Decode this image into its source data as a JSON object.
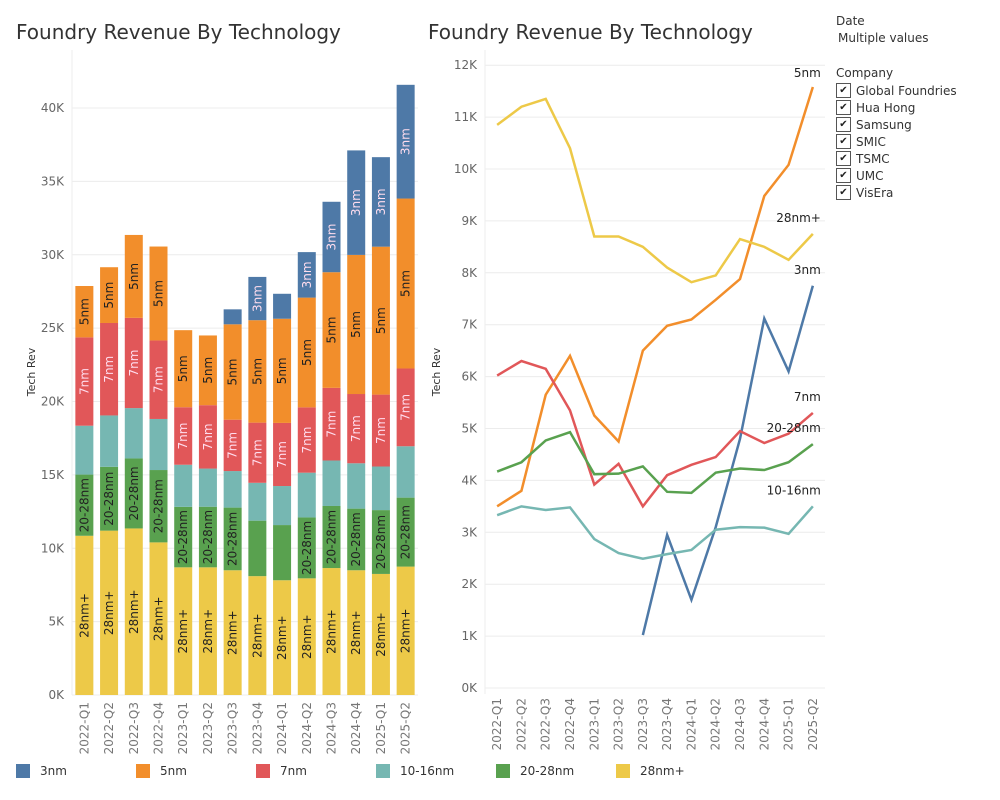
{
  "chart_data": [
    {
      "type": "bar",
      "stacked": true,
      "title": "Foundry Revenue By Technology",
      "ylabel": "Tech Rev",
      "ylim": [
        0,
        42000
      ],
      "yticks": [
        "0K",
        "5K",
        "10K",
        "15K",
        "20K",
        "25K",
        "30K",
        "35K",
        "40K"
      ],
      "ytick_values": [
        0,
        5,
        10,
        15,
        20,
        25,
        30,
        35,
        40
      ],
      "categories": [
        "2022-Q1",
        "2022-Q2",
        "2022-Q3",
        "2022-Q4",
        "2023-Q1",
        "2023-Q2",
        "2023-Q3",
        "2023-Q4",
        "2024-Q1",
        "2024-Q2",
        "2024-Q3",
        "2024-Q4",
        "2025-Q1",
        "2025-Q2"
      ],
      "stack_order": [
        "28nm+",
        "20-28nm",
        "10-16nm",
        "7nm",
        "5nm",
        "3nm"
      ],
      "label_hidden": {
        "10-16nm": [
          0,
          2,
          4,
          5,
          6,
          7,
          8,
          9,
          10,
          11,
          12
        ]
      }
    },
    {
      "type": "line",
      "title": "Foundry Revenue By Technology",
      "ylabel": "Tech Rev",
      "ylim": [
        0,
        12000
      ],
      "yticks": [
        "0K",
        "1K",
        "2K",
        "3K",
        "4K",
        "5K",
        "6K",
        "7K",
        "8K",
        "9K",
        "10K",
        "11K",
        "12K"
      ],
      "end_labels": [
        "5nm",
        "28nm+",
        "3nm",
        "7nm",
        "20-28nm",
        "10-16nm"
      ]
    }
  ],
  "series": [
    {
      "name": "3nm",
      "color": "#4e79a7",
      "values": [
        null,
        null,
        null,
        null,
        null,
        null,
        1.02,
        2.95,
        1.7,
        3.1,
        4.8,
        7.12,
        6.1,
        7.75
      ]
    },
    {
      "name": "5nm",
      "color": "#f28e2b",
      "values": [
        3.5,
        3.8,
        5.65,
        6.4,
        5.25,
        4.75,
        6.5,
        6.98,
        7.1,
        7.48,
        7.88,
        9.48,
        10.08,
        11.58
      ]
    },
    {
      "name": "7nm",
      "color": "#e15759",
      "values": [
        6.02,
        6.3,
        6.15,
        5.35,
        3.92,
        4.32,
        3.5,
        4.1,
        4.3,
        4.45,
        4.95,
        4.72,
        4.9,
        5.3
      ]
    },
    {
      "name": "10-16nm",
      "color": "#76b7b2",
      "values": [
        3.33,
        3.5,
        3.43,
        3.48,
        2.87,
        2.6,
        2.49,
        2.58,
        2.66,
        3.05,
        3.1,
        3.09,
        2.97,
        3.5
      ]
    },
    {
      "name": "20-28nm",
      "color": "#59a14f",
      "values": [
        4.17,
        4.35,
        4.77,
        4.93,
        4.12,
        4.13,
        4.27,
        3.78,
        3.76,
        4.15,
        4.23,
        4.2,
        4.35,
        4.7
      ]
    },
    {
      "name": "28nm+",
      "color": "#edc948",
      "values": [
        10.85,
        11.2,
        11.35,
        10.4,
        8.7,
        8.7,
        8.5,
        8.1,
        7.82,
        7.95,
        8.65,
        8.5,
        8.25,
        8.75
      ]
    }
  ],
  "value_unit": "K",
  "filters": {
    "date_label": "Date",
    "date_value": "Multiple values",
    "company_label": "Company",
    "companies": [
      "Global Foundries",
      "Hua Hong",
      "Samsung",
      "SMIC",
      "TSMC",
      "UMC",
      "VisEra"
    ]
  }
}
